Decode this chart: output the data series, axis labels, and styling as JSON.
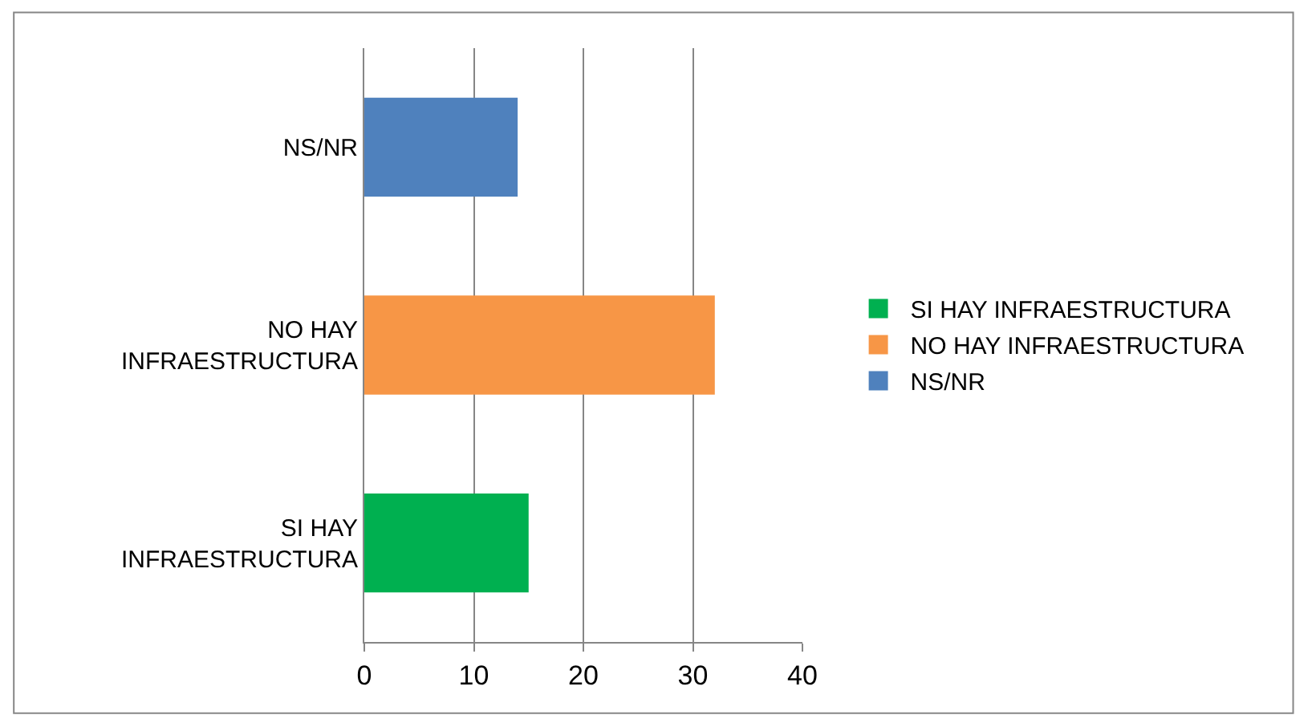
{
  "chart_data": {
    "type": "bar",
    "orientation": "horizontal",
    "categories": [
      "NS/NR",
      "NO HAY INFRAESTRUCTURA",
      "SI HAY INFRAESTRUCTURA"
    ],
    "series": [
      {
        "name": "SI HAY INFRAESTRUCTURA",
        "color": "#00b050",
        "values": [
          null,
          null,
          15
        ]
      },
      {
        "name": "NO HAY INFRAESTRUCTURA",
        "color": "#f79646",
        "values": [
          null,
          32,
          null
        ]
      },
      {
        "name": "NS/NR",
        "color": "#4f81bd",
        "values": [
          14,
          null,
          null
        ]
      }
    ],
    "xlim": [
      0,
      40
    ],
    "xticks": [
      0,
      10,
      20,
      30,
      40
    ],
    "grid": "x",
    "legend": "right"
  }
}
